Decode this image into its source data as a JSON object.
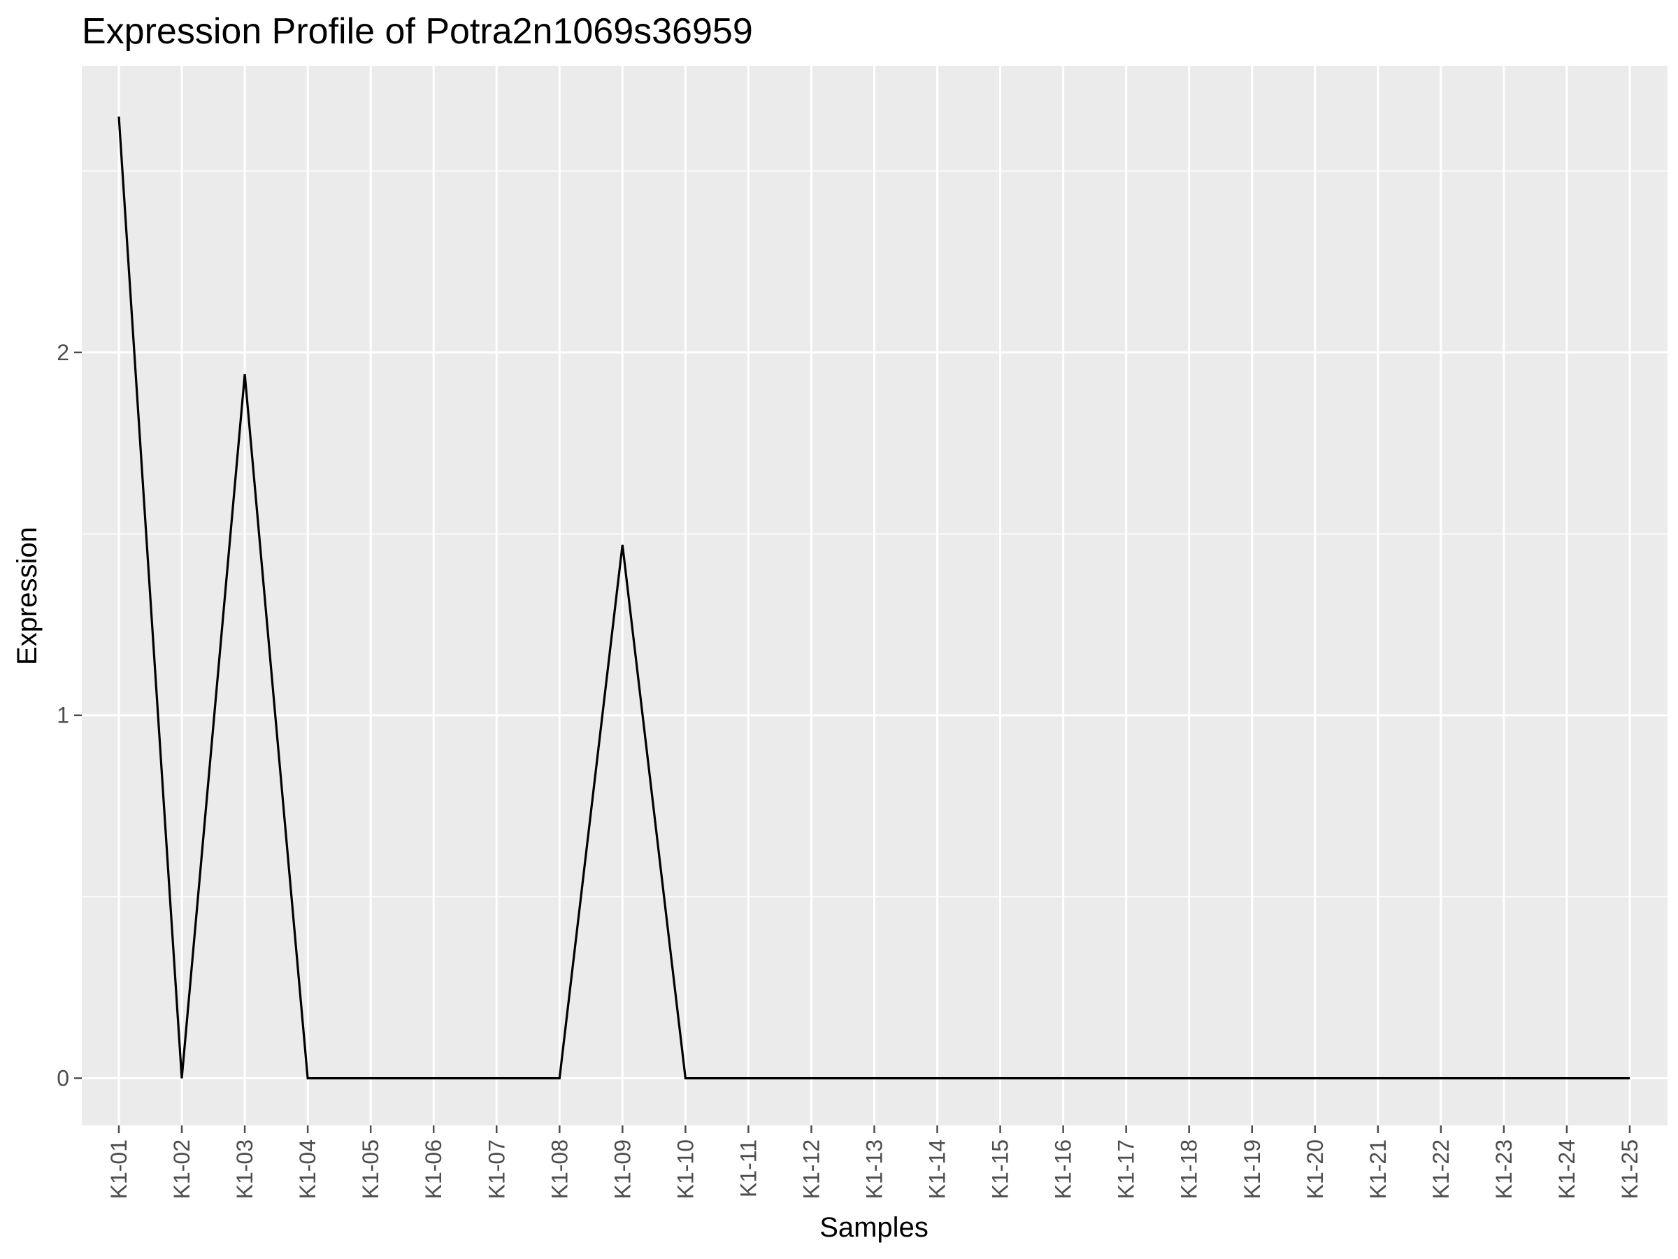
{
  "chart_data": {
    "type": "line",
    "title": "Expression Profile of Potra2n1069s36959",
    "xlabel": "Samples",
    "ylabel": "Expression",
    "categories": [
      "K1-01",
      "K1-02",
      "K1-03",
      "K1-04",
      "K1-05",
      "K1-06",
      "K1-07",
      "K1-08",
      "K1-09",
      "K1-10",
      "K1-11",
      "K1-12",
      "K1-13",
      "K1-14",
      "K1-15",
      "K1-16",
      "K1-17",
      "K1-18",
      "K1-19",
      "K1-20",
      "K1-21",
      "K1-22",
      "K1-23",
      "K1-24",
      "K1-25"
    ],
    "series": [
      {
        "values": [
          2.65,
          0,
          1.94,
          0,
          0,
          0,
          0,
          0,
          1.47,
          0,
          0,
          0,
          0,
          0,
          0,
          0,
          0,
          0,
          0,
          0,
          0,
          0,
          0,
          0,
          0
        ]
      }
    ],
    "ylim": [
      -0.13,
      2.79
    ],
    "yticks": [
      0,
      1,
      2
    ],
    "grid": true,
    "colors": {
      "panel": "#ebebeb",
      "grid": "#ffffff",
      "line": "#000000",
      "tick": "#4d4d4d"
    }
  }
}
